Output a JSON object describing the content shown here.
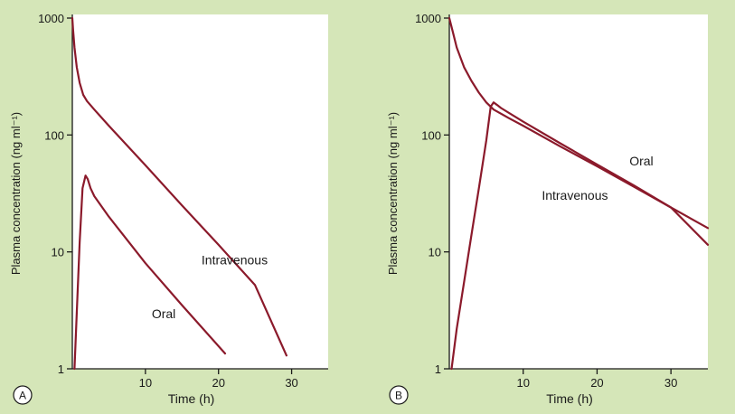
{
  "chart_data": [
    {
      "type": "line",
      "panel_label": "A",
      "title": "",
      "xlabel": "Time (h)",
      "ylabel": "Plasma concentration (ng ml⁻¹)",
      "yscale": "log",
      "xlim": [
        0,
        35
      ],
      "ylim": [
        1,
        1000
      ],
      "x_ticks": [
        10,
        20,
        30
      ],
      "y_ticks": [
        1,
        10,
        100,
        1000
      ],
      "y_tick_labels": [
        "1",
        "10",
        "100",
        "1000"
      ],
      "grid": false,
      "line_color": "#8b1a2b",
      "series": [
        {
          "name": "Intravenous",
          "x": [
            0,
            0.1,
            0.3,
            0.6,
            1.0,
            1.5,
            2.0,
            3.0,
            5.0,
            10.0,
            15.0,
            20.0,
            25.0,
            29.3
          ],
          "y": [
            1000,
            800,
            560,
            380,
            280,
            220,
            195,
            165,
            120,
            55,
            25,
            11.5,
            5.2,
            1.3
          ]
        },
        {
          "name": "Oral",
          "x": [
            0.3,
            0.6,
            1.0,
            1.4,
            1.8,
            2.1,
            2.5,
            3.0,
            5.0,
            10.0,
            15.0,
            20.9
          ],
          "y": [
            1,
            3,
            12,
            35,
            45,
            42,
            35,
            30,
            20,
            8,
            3.5,
            1.35
          ]
        }
      ]
    },
    {
      "type": "line",
      "panel_label": "B",
      "title": "",
      "xlabel": "Time (h)",
      "ylabel": "Plasma concentration (ng ml⁻¹)",
      "yscale": "log",
      "xlim": [
        0,
        35
      ],
      "ylim": [
        1,
        1000
      ],
      "x_ticks": [
        10,
        20,
        30
      ],
      "y_ticks": [
        1,
        10,
        100,
        1000
      ],
      "y_tick_labels": [
        "1",
        "10",
        "100",
        "1000"
      ],
      "grid": false,
      "line_color": "#8b1a2b",
      "series": [
        {
          "name": "Intravenous",
          "x": [
            0,
            0.5,
            1.0,
            2.0,
            3.0,
            4.0,
            5.0,
            6.0,
            8.0,
            10.0,
            15.0,
            20.0,
            25.0,
            30.0,
            35.0
          ],
          "y": [
            1000,
            750,
            560,
            380,
            290,
            230,
            190,
            165,
            140,
            120,
            80,
            54,
            36,
            24,
            11.5
          ]
        },
        {
          "name": "Oral",
          "x": [
            0.3,
            1.0,
            2.0,
            3.0,
            4.0,
            5.0,
            5.6,
            6.0,
            6.5,
            7.0,
            10.0,
            15.0,
            20.0,
            25.0,
            30.0,
            35.0
          ],
          "y": [
            1,
            2.2,
            5.5,
            14,
            35,
            90,
            175,
            190,
            180,
            170,
            130,
            85,
            56,
            37,
            24,
            16
          ]
        }
      ]
    }
  ],
  "panels": [
    {
      "annotations": [
        {
          "text": "Intravenous",
          "x": 22.2,
          "y": 7.8
        },
        {
          "text": "Oral",
          "x": 12.5,
          "y": 2.7
        }
      ]
    },
    {
      "annotations": [
        {
          "text": "Oral",
          "x": 26.0,
          "y": 55
        },
        {
          "text": "Intravenous",
          "x": 17.0,
          "y": 28
        }
      ]
    }
  ]
}
